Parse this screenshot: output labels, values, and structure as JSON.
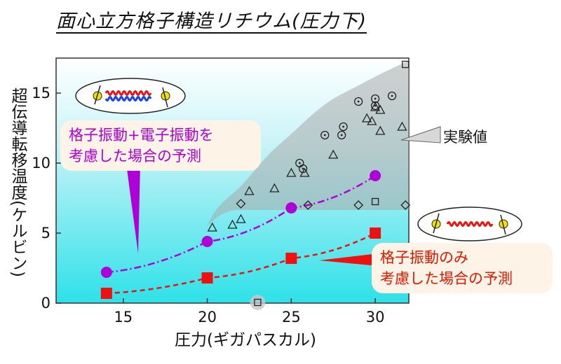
{
  "title": "面心立方格子構造リチウム(圧力下)",
  "chart_data": {
    "type": "scatter",
    "title": "面心立方格子構造リチウム(圧力下)",
    "xlabel": "圧力(ギガパスカル)",
    "ylabel": "超伝導転移温度(ケルビン)",
    "xlim": [
      11,
      32
    ],
    "ylim": [
      0,
      17.5
    ],
    "xticks": [
      15,
      20,
      25,
      30
    ],
    "yticks": [
      0,
      5,
      10,
      15
    ],
    "grid": false,
    "series": [
      {
        "name": "格子振動+電子振動を考慮した場合の予測",
        "marker": "circle-filled",
        "line": "dash-dot",
        "color": "#b000d8",
        "points": [
          [
            14,
            2.2
          ],
          [
            20,
            4.4
          ],
          [
            25,
            6.8
          ],
          [
            30,
            9.1
          ]
        ]
      },
      {
        "name": "格子振動のみ考慮した場合の予測",
        "marker": "square-filled",
        "line": "dashed",
        "color": "#f01010",
        "points": [
          [
            14,
            0.7
          ],
          [
            20,
            1.8
          ],
          [
            25,
            3.2
          ],
          [
            30,
            5.0
          ]
        ]
      },
      {
        "name": "実験値 (circle)",
        "marker": "circle-dot",
        "points": [
          [
            25.5,
            10.0
          ],
          [
            25.7,
            9.6
          ],
          [
            27,
            12.0
          ],
          [
            28,
            12.0
          ],
          [
            28.1,
            12.6
          ],
          [
            29,
            14.4
          ],
          [
            30,
            14.6
          ],
          [
            30,
            14.1
          ],
          [
            31,
            14.8
          ]
        ]
      },
      {
        "name": "実験値 (triangle)",
        "marker": "triangle",
        "points": [
          [
            20.3,
            5.4
          ],
          [
            21.5,
            5.6
          ],
          [
            22.0,
            6.0
          ],
          [
            22.5,
            8.0
          ],
          [
            24.0,
            8.2
          ],
          [
            25.0,
            9.3
          ],
          [
            25.8,
            9.3
          ],
          [
            27.5,
            10.6
          ],
          [
            29.5,
            13.2
          ],
          [
            29.8,
            13.0
          ],
          [
            30.3,
            12.3
          ],
          [
            30.0,
            14.0
          ],
          [
            30.3,
            13.8
          ],
          [
            31.6,
            12.6
          ]
        ]
      },
      {
        "name": "実験値 (diamond)",
        "marker": "diamond",
        "points": [
          [
            22.0,
            7.1
          ],
          [
            26.0,
            7.0
          ],
          [
            29.0,
            7.0
          ],
          [
            31.8,
            7.0
          ]
        ]
      },
      {
        "name": "実験値 (square)",
        "marker": "square-open",
        "points": [
          [
            23,
            0.0
          ],
          [
            30,
            7.2
          ],
          [
            31.8,
            17.0
          ]
        ]
      }
    ],
    "annotations": {
      "purple_callout": [
        "格子振動+電子振動を",
        "考慮した場合の予測"
      ],
      "red_callout": [
        "格子振動のみ",
        "考慮した場合の予測"
      ],
      "experiment_label": "実験値"
    },
    "colors": {
      "purple": "#b000d8",
      "red": "#f01010",
      "plot_gradient_top": "#ffffff",
      "plot_gradient_bottom": "#28e0e8",
      "experiment_band": "#b8b8b8"
    }
  }
}
